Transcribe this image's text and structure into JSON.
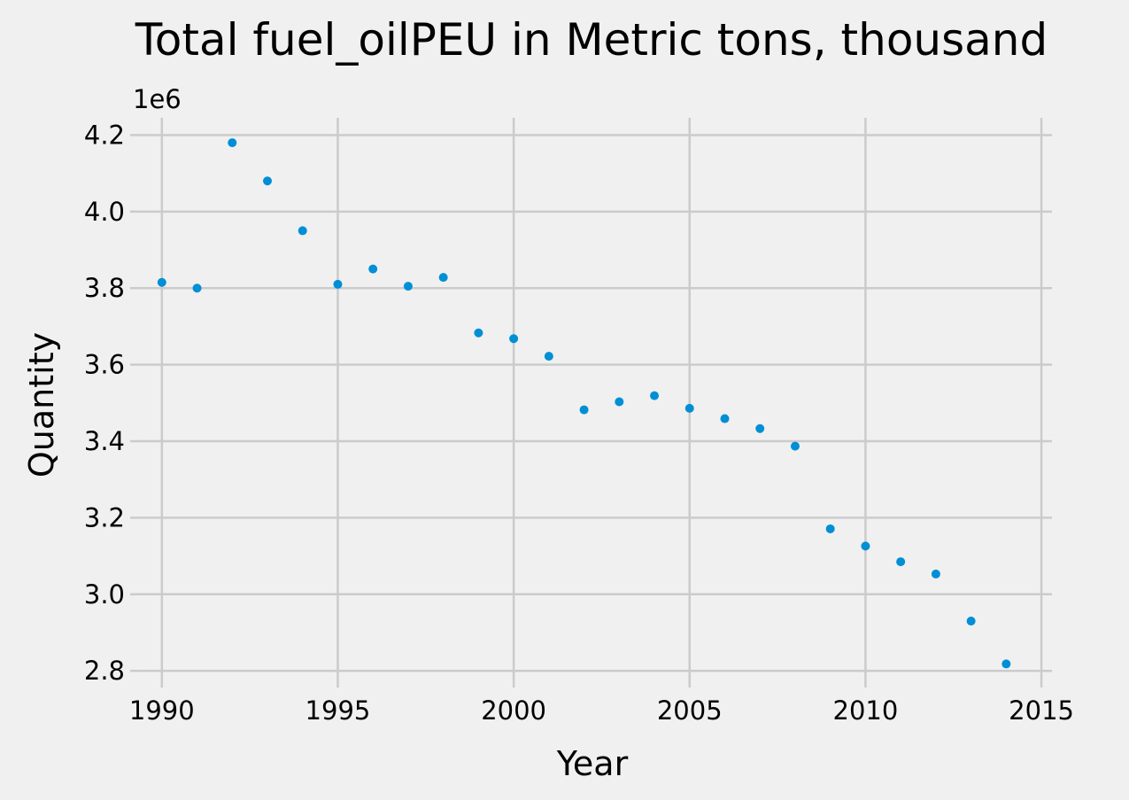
{
  "chart_data": {
    "type": "scatter",
    "title": "Total fuel_oilPEU in Metric tons,  thousand",
    "xlabel": "Year",
    "ylabel": "Quantity",
    "y_offset_label": "1e6",
    "y_scale_factor": 1000000,
    "xlim": [
      1989.3,
      2015.3
    ],
    "ylim": [
      2.775,
      4.245
    ],
    "x_ticks": [
      1990,
      1995,
      2000,
      2005,
      2010,
      2015
    ],
    "y_ticks": [
      2.8,
      3.0,
      3.2,
      3.4,
      3.6,
      3.8,
      4.0,
      4.2
    ],
    "grid": true,
    "marker_color": "#008fd5",
    "background": "#f0f0f0",
    "grid_color": "#cbcbcb",
    "x": [
      1990,
      1991,
      1992,
      1993,
      1994,
      1995,
      1996,
      1997,
      1998,
      1999,
      2000,
      2001,
      2002,
      2003,
      2004,
      2005,
      2006,
      2007,
      2008,
      2009,
      2010,
      2011,
      2012,
      2013,
      2014
    ],
    "y": [
      3815000,
      3800000,
      4180000,
      4080000,
      3950000,
      3810000,
      3850000,
      3805000,
      3828000,
      3683000,
      3668000,
      3622000,
      3482000,
      3503000,
      3519000,
      3486000,
      3459000,
      3433000,
      3387000,
      3171000,
      3126000,
      3085000,
      3053000,
      2930000,
      2818000
    ]
  }
}
